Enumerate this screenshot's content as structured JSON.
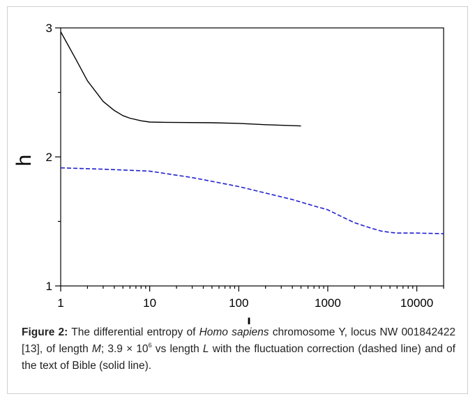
{
  "chart_data": {
    "type": "line",
    "xlabel": "L",
    "ylabel": "h",
    "x_scale": "log",
    "xlim": [
      1,
      20000
    ],
    "ylim": [
      1,
      3
    ],
    "x_ticks": [
      1,
      10,
      100,
      1000,
      10000
    ],
    "x_tick_labels": [
      "1",
      "10",
      "100",
      "1000",
      "10000"
    ],
    "y_ticks": [
      1,
      2,
      3
    ],
    "y_tick_labels": [
      "1",
      "2",
      "3"
    ],
    "grid": false,
    "series": [
      {
        "style": "solid",
        "color": "#000000",
        "x": [
          1,
          1.5,
          2,
          3,
          4,
          5,
          6,
          8,
          10,
          15,
          20,
          50,
          100,
          200,
          500
        ],
        "y": [
          2.97,
          2.75,
          2.59,
          2.43,
          2.36,
          2.32,
          2.3,
          2.28,
          2.27,
          2.268,
          2.267,
          2.265,
          2.26,
          2.25,
          2.24
        ]
      },
      {
        "style": "dashed",
        "color": "#1f1fcf",
        "x": [
          1,
          3,
          10,
          30,
          60,
          100,
          200,
          400,
          700,
          1000,
          1500,
          2000,
          3000,
          4000,
          5000,
          6000,
          10000,
          20000
        ],
        "y": [
          1.915,
          1.905,
          1.89,
          1.84,
          1.8,
          1.77,
          1.72,
          1.67,
          1.62,
          1.59,
          1.53,
          1.49,
          1.45,
          1.425,
          1.415,
          1.41,
          1.41,
          1.405
        ]
      }
    ]
  },
  "caption": {
    "label": "Figure 2:",
    "t1": " The differential entropy of ",
    "species": "Homo sapiens",
    "t2": " chromosome Y, locus NW 001842422 [13], of length ",
    "var_m": "M",
    "t3": "; 3.9 × 10",
    "exp": "6",
    "t4": " vs length ",
    "var_l": "L",
    "t5": " with the fluctuation correction (dashed line) and of the text of Bible (solid line)."
  }
}
